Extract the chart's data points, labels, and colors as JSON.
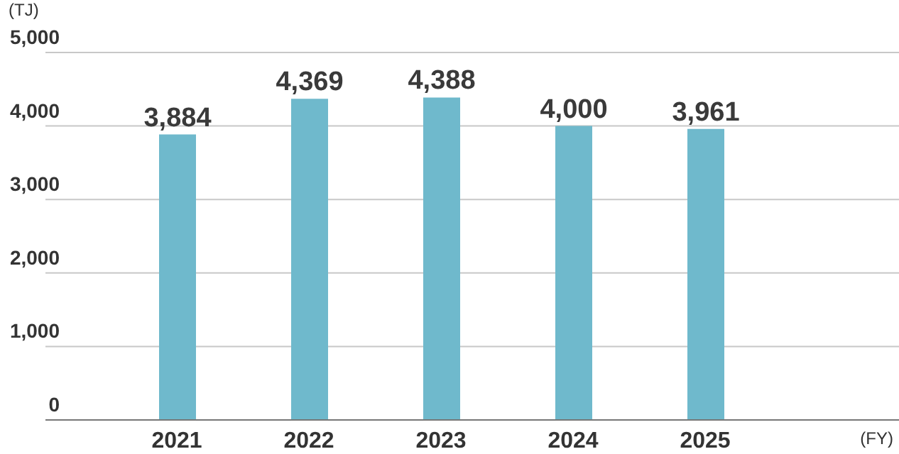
{
  "chart_data": {
    "type": "bar",
    "ylabel": "(TJ)",
    "annotations": [
      "(FY)"
    ],
    "categories": [
      "2021",
      "2022",
      "2023",
      "2024",
      "2025"
    ],
    "values": [
      3884,
      4369,
      4388,
      4000,
      3961
    ],
    "color": "#6fb9cc",
    "value_labels": [
      "3,884",
      "4,369",
      "4,388",
      "4,000",
      "3,961"
    ],
    "ylim": [
      0,
      5000
    ],
    "yticks": [
      0,
      {
        "value": 1000,
        "label": "1,000"
      },
      {
        "value": 2000,
        "label": "2,000"
      },
      {
        "value": 3000,
        "label": "3,000"
      },
      {
        "value": 4000,
        "label": "4,000"
      },
      {
        "value": 5000,
        "label": "5,000"
      }
    ],
    "grid": "y"
  }
}
